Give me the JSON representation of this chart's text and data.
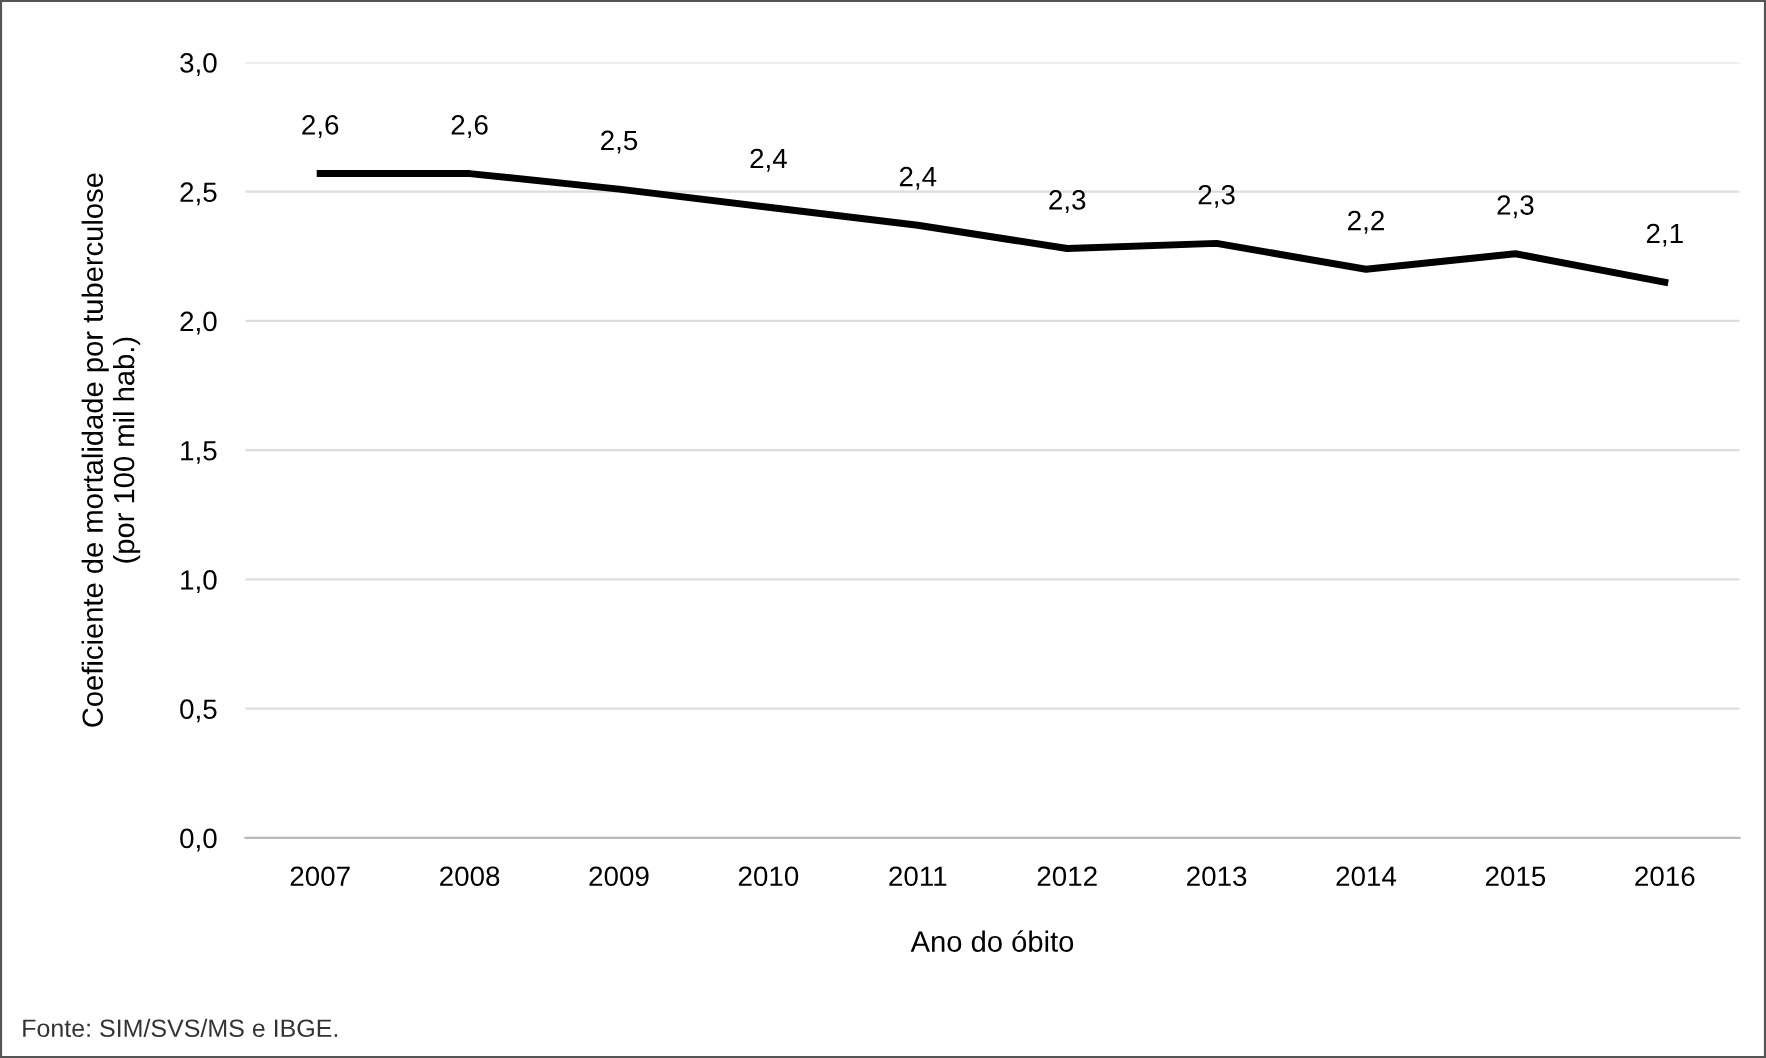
{
  "chart_data": {
    "type": "line",
    "xlabel": "Ano do óbito",
    "ylabel": "Coeficiente de mortalidade por tuberculose\n(por 100 mil hab.)",
    "categories": [
      "2007",
      "2008",
      "2009",
      "2010",
      "2011",
      "2012",
      "2013",
      "2014",
      "2015",
      "2016"
    ],
    "series": [
      {
        "color": "#000000",
        "values": [
          2.57,
          2.57,
          2.51,
          2.44,
          2.37,
          2.28,
          2.3,
          2.2,
          2.26,
          2.15
        ],
        "value_labels": [
          "2,6",
          "2,6",
          "2,5",
          "2,4",
          "2,4",
          "2,3",
          "2,3",
          "2,2",
          "2,3",
          "2,1"
        ]
      }
    ],
    "ylim": [
      0,
      3
    ],
    "yticks": [
      {
        "value": 0,
        "label": "0,0"
      },
      {
        "value": 0.5,
        "label": "0,5"
      },
      {
        "value": 1,
        "label": "1,0"
      },
      {
        "value": 1.5,
        "label": "1,5"
      },
      {
        "value": 2,
        "label": "2,0"
      },
      {
        "value": 2.5,
        "label": "2,5"
      },
      {
        "value": 3,
        "label": "3,0"
      }
    ],
    "grid": "y",
    "marker": "none",
    "line_style": "solid",
    "annotations": [
      "Fonte: SIM/SVS/MS e IBGE."
    ]
  }
}
